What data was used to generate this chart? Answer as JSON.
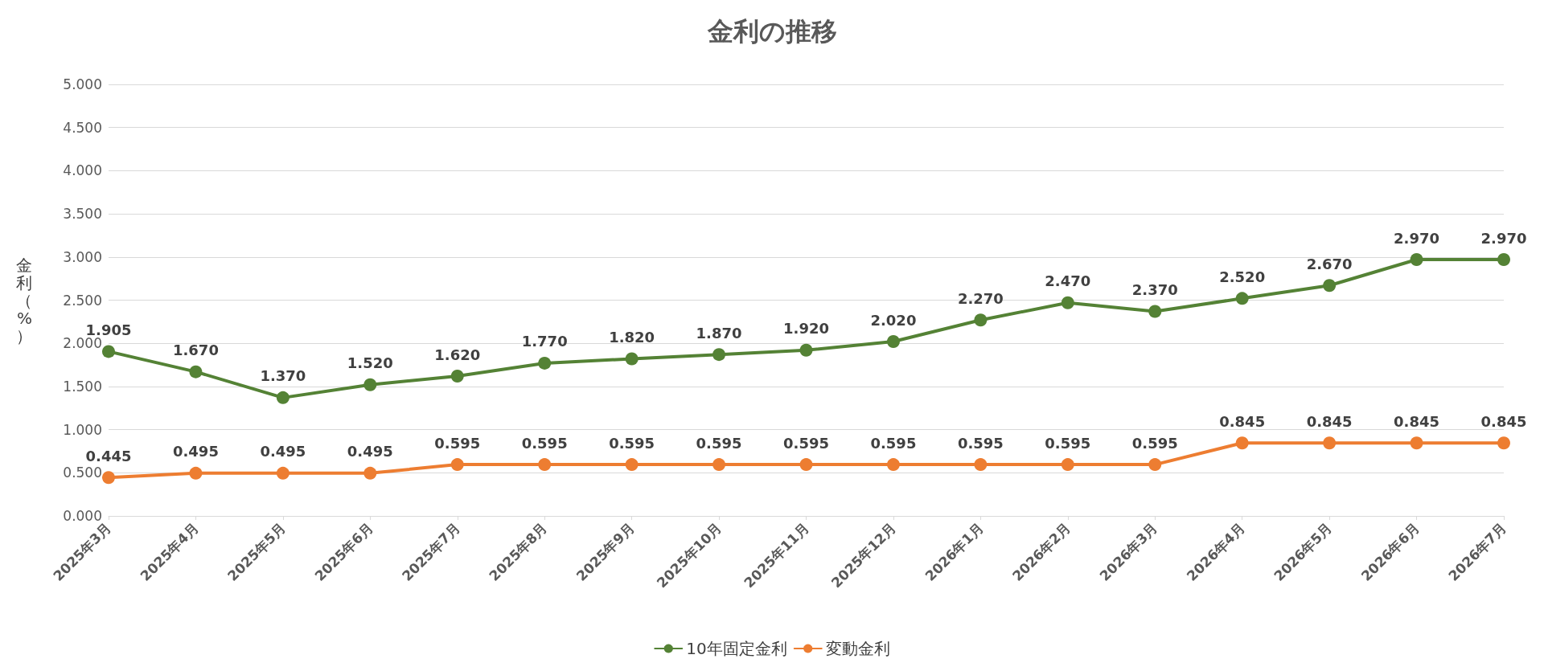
{
  "chart_data": {
    "type": "line",
    "title": "金利の推移",
    "ylabel": "金利（%）",
    "categories": [
      "2025年3月",
      "2025年4月",
      "2025年5月",
      "2025年6月",
      "2025年7月",
      "2025年8月",
      "2025年9月",
      "2025年10月",
      "2025年11月",
      "2025年12月",
      "2026年1月",
      "2026年2月",
      "2026年3月",
      "2026年4月",
      "2026年5月",
      "2026年6月",
      "2026年7月"
    ],
    "series": [
      {
        "name": "10年固定金利",
        "color": "#548235",
        "values": [
          1.905,
          1.67,
          1.37,
          1.52,
          1.62,
          1.77,
          1.82,
          1.87,
          1.92,
          2.02,
          2.27,
          2.47,
          2.37,
          2.52,
          2.67,
          2.97,
          2.97
        ],
        "value_labels": [
          "1.905",
          "1.670",
          "1.370",
          "1.520",
          "1.620",
          "1.770",
          "1.820",
          "1.870",
          "1.920",
          "2.020",
          "2.270",
          "2.470",
          "2.370",
          "2.520",
          "2.670",
          "2.970",
          "2.970"
        ]
      },
      {
        "name": "変動金利",
        "color": "#ed7d31",
        "values": [
          0.445,
          0.495,
          0.495,
          0.495,
          0.595,
          0.595,
          0.595,
          0.595,
          0.595,
          0.595,
          0.595,
          0.595,
          0.595,
          0.845,
          0.845,
          0.845,
          0.845
        ],
        "value_labels": [
          "0.445",
          "0.495",
          "0.495",
          "0.495",
          "0.595",
          "0.595",
          "0.595",
          "0.595",
          "0.595",
          "0.595",
          "0.595",
          "0.595",
          "0.595",
          "0.845",
          "0.845",
          "0.845",
          "0.845"
        ]
      }
    ],
    "ylim": [
      0,
      5
    ],
    "yticks": [
      {
        "value": 0,
        "label": "0.000"
      },
      {
        "value": 0.5,
        "label": "0.500"
      },
      {
        "value": 1,
        "label": "1.000"
      },
      {
        "value": 1.5,
        "label": "1.500"
      },
      {
        "value": 2,
        "label": "2.000"
      },
      {
        "value": 2.5,
        "label": "2.500"
      },
      {
        "value": 3,
        "label": "3.000"
      },
      {
        "value": 3.5,
        "label": "3.500"
      },
      {
        "value": 4,
        "label": "4.000"
      },
      {
        "value": 4.5,
        "label": "4.500"
      },
      {
        "value": 5,
        "label": "5.000"
      }
    ],
    "grid": "y",
    "legend": "bottom",
    "marker": "circle",
    "line_style": "solid"
  }
}
